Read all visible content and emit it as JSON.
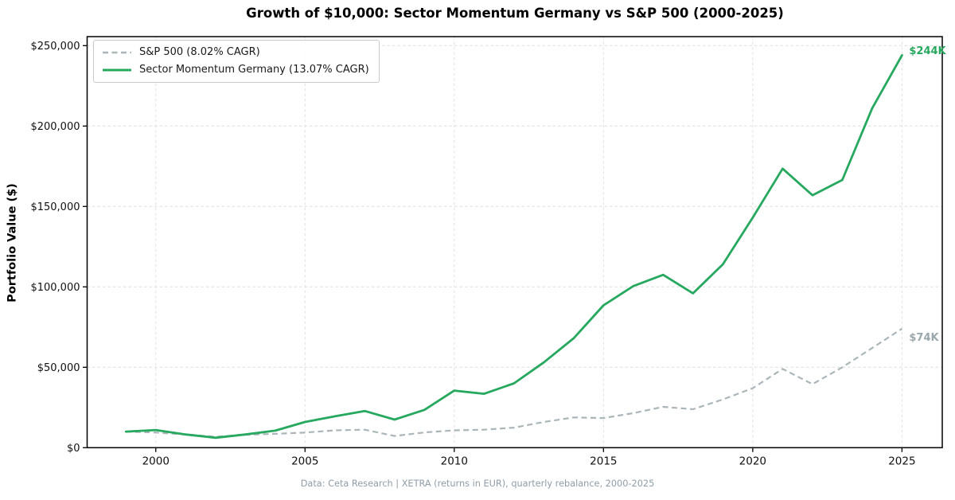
{
  "chart_data": {
    "type": "line",
    "title": "Growth of $10,000: Sector Momentum Germany vs S&P 500 (2000-2025)",
    "xlabel": "",
    "ylabel": "Portfolio Value ($)",
    "footnote": "Data: Ceta Research | XETRA (returns in EUR), quarterly rebalance, 2000-2025",
    "x": [
      1999,
      2000,
      2001,
      2002,
      2003,
      2004,
      2005,
      2006,
      2007,
      2008,
      2009,
      2010,
      2011,
      2012,
      2013,
      2014,
      2015,
      2016,
      2017,
      2018,
      2019,
      2020,
      2021,
      2022,
      2023,
      2024,
      2025
    ],
    "series": [
      {
        "name": "S&P 500",
        "label": "S&P 500 (8.02% CAGR)",
        "cagr": "8.02%",
        "color": "#aab6b9",
        "line_style": "dashed",
        "values": [
          10000,
          9400,
          8200,
          6800,
          8000,
          8600,
          9400,
          10800,
          11200,
          7300,
          9500,
          10800,
          11200,
          12500,
          16000,
          18800,
          18400,
          21500,
          25400,
          23900,
          30000,
          37000,
          49000,
          39500,
          50000,
          62000,
          74000
        ]
      },
      {
        "name": "Sector Momentum Germany",
        "label": "Sector Momentum Germany (13.07% CAGR)",
        "cagr": "13.07%",
        "color": "#27a85f",
        "line_style": "solid",
        "values": [
          10000,
          11000,
          8200,
          6200,
          8200,
          10600,
          16000,
          19500,
          22800,
          17500,
          23500,
          35500,
          33500,
          40000,
          53000,
          68000,
          88500,
          100500,
          107500,
          96000,
          114000,
          143000,
          173500,
          157000,
          166500,
          211000,
          244000
        ]
      }
    ],
    "annotations": [
      {
        "text": "$244K",
        "x": 2025,
        "y": 244000,
        "color": "#27a85f"
      },
      {
        "text": "$74K",
        "x": 2025,
        "y": 74000,
        "color": "#9aa7ac"
      }
    ],
    "xticks": {
      "values": [
        2000,
        2005,
        2010,
        2015,
        2020,
        2025
      ],
      "labels": [
        "2000",
        "2005",
        "2010",
        "2015",
        "2020",
        "2025"
      ]
    },
    "yticks": {
      "values": [
        0,
        50000,
        100000,
        150000,
        200000,
        250000
      ],
      "labels": [
        "$0",
        "$50,000",
        "$100,000",
        "$150,000",
        "$200,000",
        "$250,000"
      ]
    },
    "xlim": [
      1997.7,
      2026.35
    ],
    "ylim": [
      0,
      255600
    ],
    "grid": true,
    "legend_position": "upper-left"
  }
}
